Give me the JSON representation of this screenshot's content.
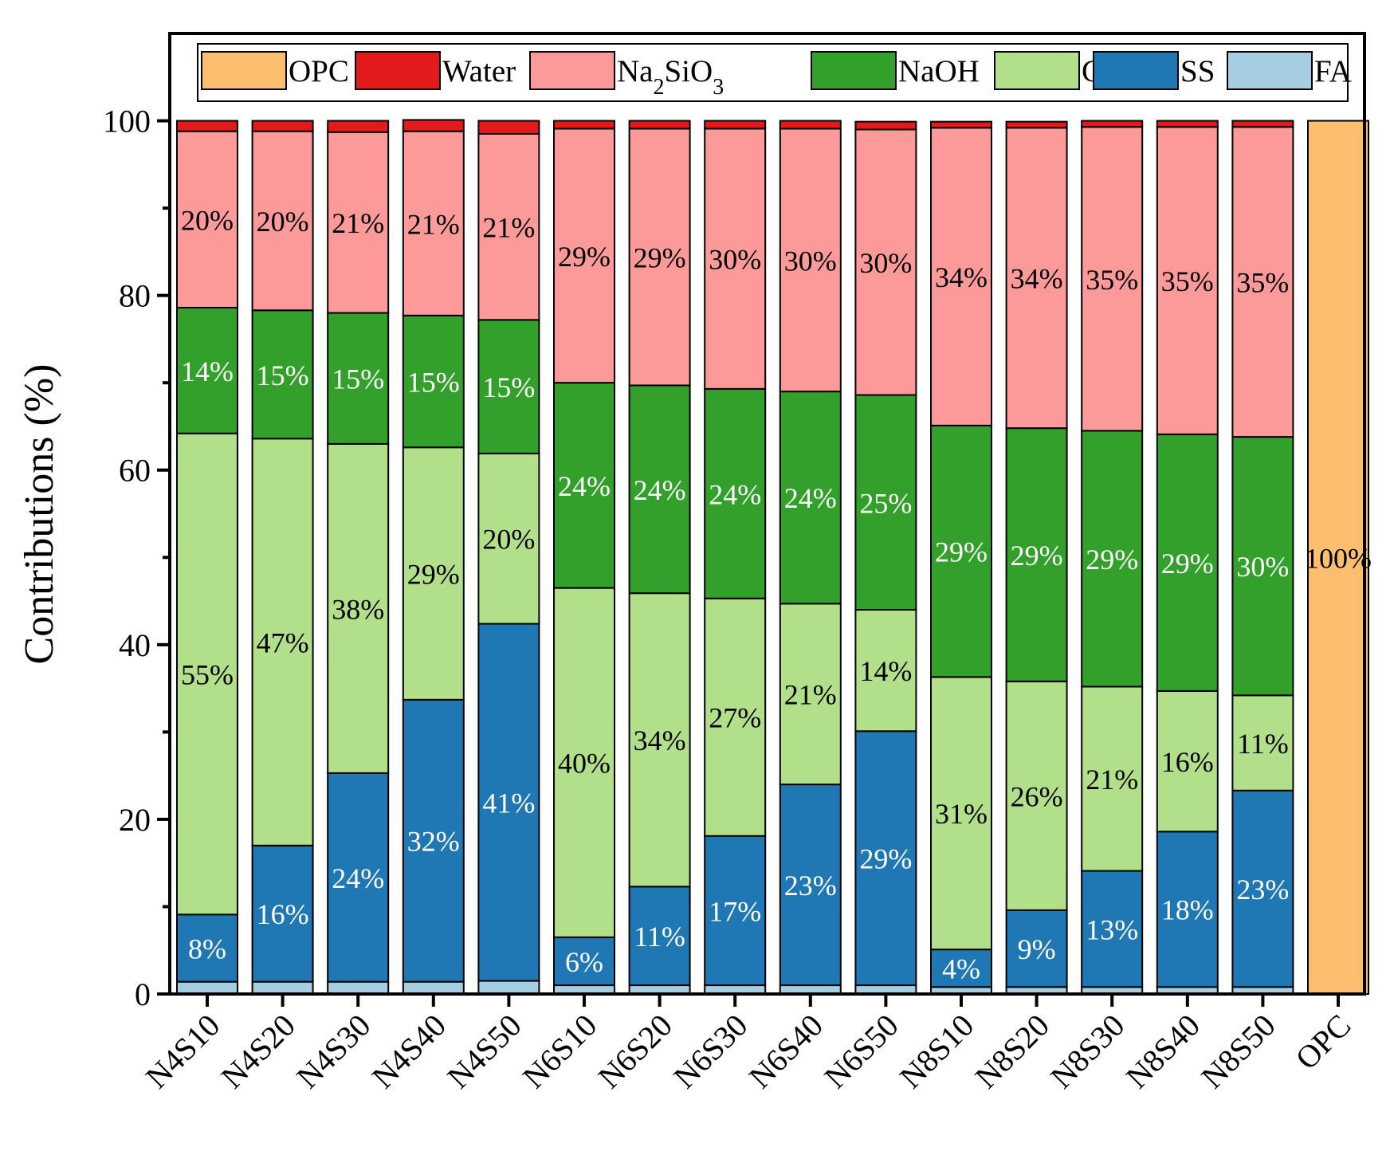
{
  "chart_data": {
    "type": "bar",
    "stacked": true,
    "title": "",
    "xlabel": "",
    "ylabel": "Contributions (%)",
    "ylim": [
      0,
      110
    ],
    "yticks": [
      0,
      20,
      40,
      60,
      80,
      100
    ],
    "legend_position": "top",
    "categories": [
      "N4S10",
      "N4S20",
      "N4S30",
      "N4S40",
      "N4S50",
      "N6S10",
      "N6S20",
      "N6S30",
      "N6S40",
      "N6S50",
      "N8S10",
      "N8S20",
      "N8S30",
      "N8S40",
      "N8S50",
      "OPC"
    ],
    "legend_order": [
      "OPC",
      "Water",
      "Na2SiO3",
      "NaOH",
      "GGBS",
      "SS",
      "FA"
    ],
    "series": [
      {
        "key": "FA",
        "name": "FA",
        "color": "#a6cee3",
        "label_color": "#000000",
        "values": [
          1.4,
          1.4,
          1.4,
          1.4,
          1.5,
          1.0,
          1.0,
          1.0,
          1.0,
          1.0,
          0.8,
          0.8,
          0.8,
          0.8,
          0.8,
          0
        ],
        "labels": [
          "",
          "",
          "",
          "",
          "",
          "",
          "",
          "",
          "",
          "",
          "",
          "",
          "",
          "",
          "",
          ""
        ]
      },
      {
        "key": "SS",
        "name": "SS",
        "color": "#1f78b4",
        "label_color": "#ffffff",
        "values": [
          7.7,
          15.6,
          23.9,
          32.3,
          40.9,
          5.5,
          11.3,
          17.1,
          23.0,
          29.1,
          4.3,
          8.8,
          13.3,
          17.8,
          22.5,
          0
        ],
        "labels": [
          "8%",
          "16%",
          "24%",
          "32%",
          "41%",
          "6%",
          "11%",
          "17%",
          "23%",
          "29%",
          "4%",
          "9%",
          "13%",
          "18%",
          "23%",
          ""
        ]
      },
      {
        "key": "GGBS",
        "name": "GGBS",
        "color": "#b2df8a",
        "label_color": "#000000",
        "values": [
          55.1,
          46.6,
          37.7,
          28.9,
          19.5,
          40.0,
          33.6,
          27.2,
          20.7,
          13.9,
          31.2,
          26.2,
          21.1,
          16.1,
          10.9,
          0
        ],
        "labels": [
          "55%",
          "47%",
          "38%",
          "29%",
          "20%",
          "40%",
          "34%",
          "27%",
          "21%",
          "14%",
          "31%",
          "26%",
          "21%",
          "16%",
          "11%",
          ""
        ]
      },
      {
        "key": "NaOH",
        "name": "NaOH",
        "color": "#33a02c",
        "label_color": "#ffffff",
        "values": [
          14.4,
          14.7,
          15.0,
          15.1,
          15.3,
          23.5,
          23.8,
          24.0,
          24.3,
          24.6,
          28.8,
          29.0,
          29.3,
          29.4,
          29.6,
          0
        ],
        "labels": [
          "14%",
          "15%",
          "15%",
          "15%",
          "15%",
          "24%",
          "24%",
          "24%",
          "24%",
          "25%",
          "29%",
          "29%",
          "29%",
          "29%",
          "30%",
          ""
        ]
      },
      {
        "key": "Na2SiO3",
        "name": "Na2SiO3",
        "color": "#fb9a99",
        "label_color": "#000000",
        "values": [
          20.2,
          20.5,
          20.7,
          21.1,
          21.3,
          29.1,
          29.4,
          29.8,
          30.1,
          30.4,
          34.1,
          34.4,
          34.8,
          35.2,
          35.5,
          0
        ],
        "labels": [
          "20%",
          "20%",
          "21%",
          "21%",
          "21%",
          "29%",
          "29%",
          "30%",
          "30%",
          "30%",
          "34%",
          "34%",
          "35%",
          "35%",
          "35%",
          ""
        ]
      },
      {
        "key": "Water",
        "name": "Water",
        "color": "#e31a1c",
        "label_color": "#000000",
        "values": [
          1.2,
          1.2,
          1.3,
          1.3,
          1.5,
          0.9,
          0.9,
          0.9,
          0.9,
          0.9,
          0.7,
          0.7,
          0.7,
          0.7,
          0.7,
          0
        ],
        "labels": [
          "",
          "",
          "",
          "",
          "",
          "",
          "",
          "",
          "",
          "",
          "",
          "",
          "",
          "",
          "",
          ""
        ]
      },
      {
        "key": "OPC",
        "name": "OPC",
        "color": "#fdbf6f",
        "label_color": "#000000",
        "values": [
          0,
          0,
          0,
          0,
          0,
          0,
          0,
          0,
          0,
          0,
          0,
          0,
          0,
          0,
          0,
          100
        ],
        "labels": [
          "",
          "",
          "",
          "",
          "",
          "",
          "",
          "",
          "",
          "",
          "",
          "",
          "",
          "",
          "",
          "100%"
        ]
      }
    ]
  }
}
